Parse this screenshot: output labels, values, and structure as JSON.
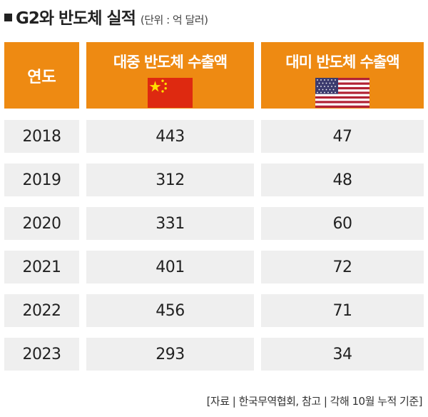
{
  "title": "G2와 반도체 실적",
  "unit": "(단위 : 억 달러)",
  "source": "[자료 | 한국무역협회, 참고 | 각해 10월 누적 기준]",
  "colors": {
    "header": "#ee8a12",
    "row": "#efefef"
  },
  "chart_data": {
    "type": "table",
    "columns": [
      "연도",
      "대중 반도체 수출액",
      "대미 반도체 수출액"
    ],
    "column_icons": [
      "",
      "china-flag-icon",
      "usa-flag-icon"
    ],
    "rows": [
      [
        "2018",
        "443",
        "47"
      ],
      [
        "2019",
        "312",
        "48"
      ],
      [
        "2020",
        "331",
        "60"
      ],
      [
        "2021",
        "401",
        "72"
      ],
      [
        "2022",
        "456",
        "71"
      ],
      [
        "2023",
        "293",
        "34"
      ]
    ]
  }
}
